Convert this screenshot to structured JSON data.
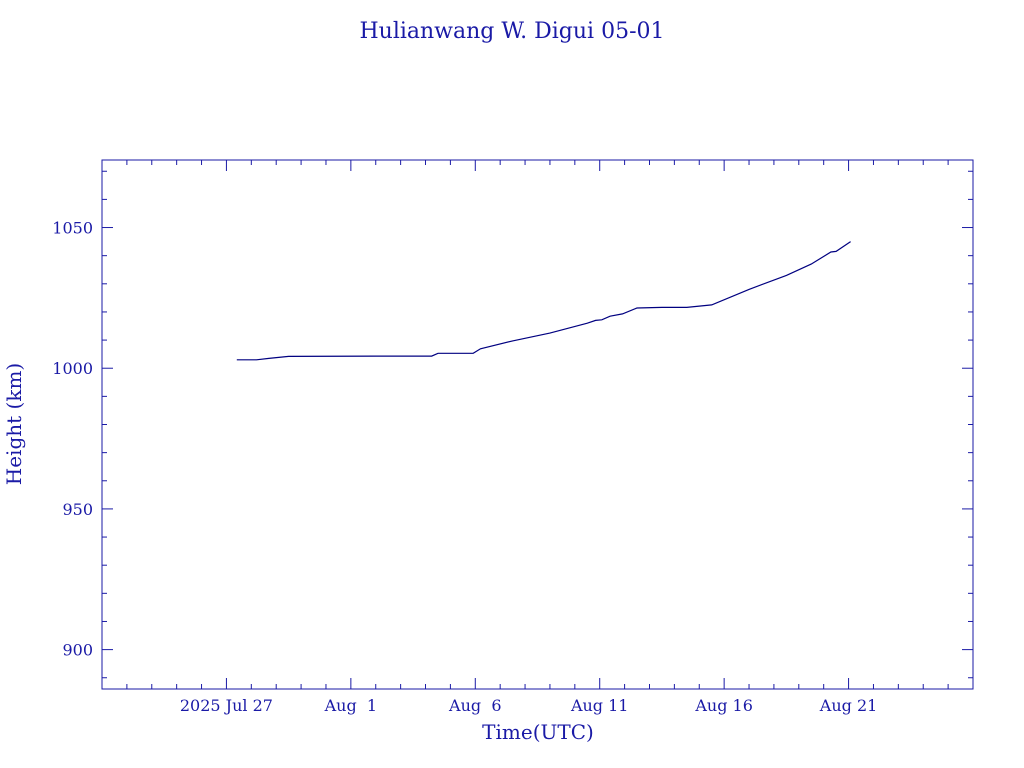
{
  "chart_data": {
    "type": "line",
    "title": "Hulianwang W. Digui 05-01",
    "xlabel": "Time(UTC)",
    "ylabel": "Height (km)",
    "xlim": [
      "2025-07-22",
      "2025-08-26"
    ],
    "ylim": [
      886,
      1074
    ],
    "x_ticks": [
      {
        "value": "2025-07-27",
        "label": "2025 Jul 27"
      },
      {
        "value": "2025-08-01",
        "label": "Aug  1"
      },
      {
        "value": "2025-08-06",
        "label": "Aug  6"
      },
      {
        "value": "2025-08-11",
        "label": "Aug 11"
      },
      {
        "value": "2025-08-16",
        "label": "Aug 16"
      },
      {
        "value": "2025-08-21",
        "label": "Aug 21"
      }
    ],
    "y_ticks": [
      900,
      950,
      1000,
      1050
    ],
    "grid": false,
    "colors": {
      "axis": "#1a1aa6",
      "line": "#000080"
    },
    "series": [
      {
        "points": [
          {
            "x": "2025-07-27T10:00",
            "y": 1003.0
          },
          {
            "x": "2025-07-28T05:00",
            "y": 1003.0
          },
          {
            "x": "2025-07-28T17:00",
            "y": 1003.5
          },
          {
            "x": "2025-07-29T12:00",
            "y": 1004.2
          },
          {
            "x": "2025-08-02T00:00",
            "y": 1004.3
          },
          {
            "x": "2025-08-04T06:00",
            "y": 1004.3
          },
          {
            "x": "2025-08-04T12:00",
            "y": 1005.3
          },
          {
            "x": "2025-08-05T22:00",
            "y": 1005.3
          },
          {
            "x": "2025-08-06T05:00",
            "y": 1006.9
          },
          {
            "x": "2025-08-07T12:00",
            "y": 1009.7
          },
          {
            "x": "2025-08-09T00:00",
            "y": 1012.5
          },
          {
            "x": "2025-08-10T12:00",
            "y": 1016.0
          },
          {
            "x": "2025-08-10T20:00",
            "y": 1017.0
          },
          {
            "x": "2025-08-11T02:00",
            "y": 1017.2
          },
          {
            "x": "2025-08-11T10:00",
            "y": 1018.5
          },
          {
            "x": "2025-08-11T22:00",
            "y": 1019.3
          },
          {
            "x": "2025-08-12T12:00",
            "y": 1021.4
          },
          {
            "x": "2025-08-13T12:00",
            "y": 1021.6
          },
          {
            "x": "2025-08-14T12:00",
            "y": 1021.6
          },
          {
            "x": "2025-08-15T12:00",
            "y": 1022.5
          },
          {
            "x": "2025-08-17T00:00",
            "y": 1028.0
          },
          {
            "x": "2025-08-18T12:00",
            "y": 1033.0
          },
          {
            "x": "2025-08-19T12:00",
            "y": 1037.0
          },
          {
            "x": "2025-08-20T07:00",
            "y": 1041.3
          },
          {
            "x": "2025-08-20T12:00",
            "y": 1041.5
          },
          {
            "x": "2025-08-21T02:00",
            "y": 1045.0
          }
        ]
      }
    ]
  }
}
